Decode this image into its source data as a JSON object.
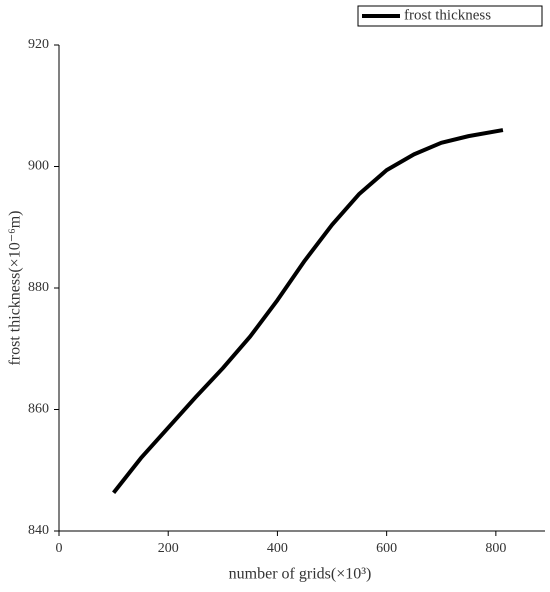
{
  "chart_data": {
    "type": "line",
    "x_label": "number of grids(×10³)",
    "y_label": "frost thickness(×10⁻⁶m)",
    "x": [
      100,
      150,
      200,
      250,
      300,
      350,
      400,
      450,
      500,
      550,
      600,
      650,
      700,
      750,
      813
    ],
    "series": [
      {
        "name": "frost thickness",
        "color": "#000000",
        "values": [
          846.3,
          852,
          857,
          862,
          866.8,
          872,
          878,
          884.5,
          890.4,
          895.5,
          899.4,
          902,
          903.9,
          905,
          906
        ]
      }
    ],
    "xlim": [
      0,
      890
    ],
    "xticks": [
      0,
      200,
      400,
      600,
      800
    ],
    "ylim": [
      840,
      920
    ],
    "yticks": [
      840,
      860,
      880,
      900,
      920
    ],
    "legend": "top-right"
  }
}
